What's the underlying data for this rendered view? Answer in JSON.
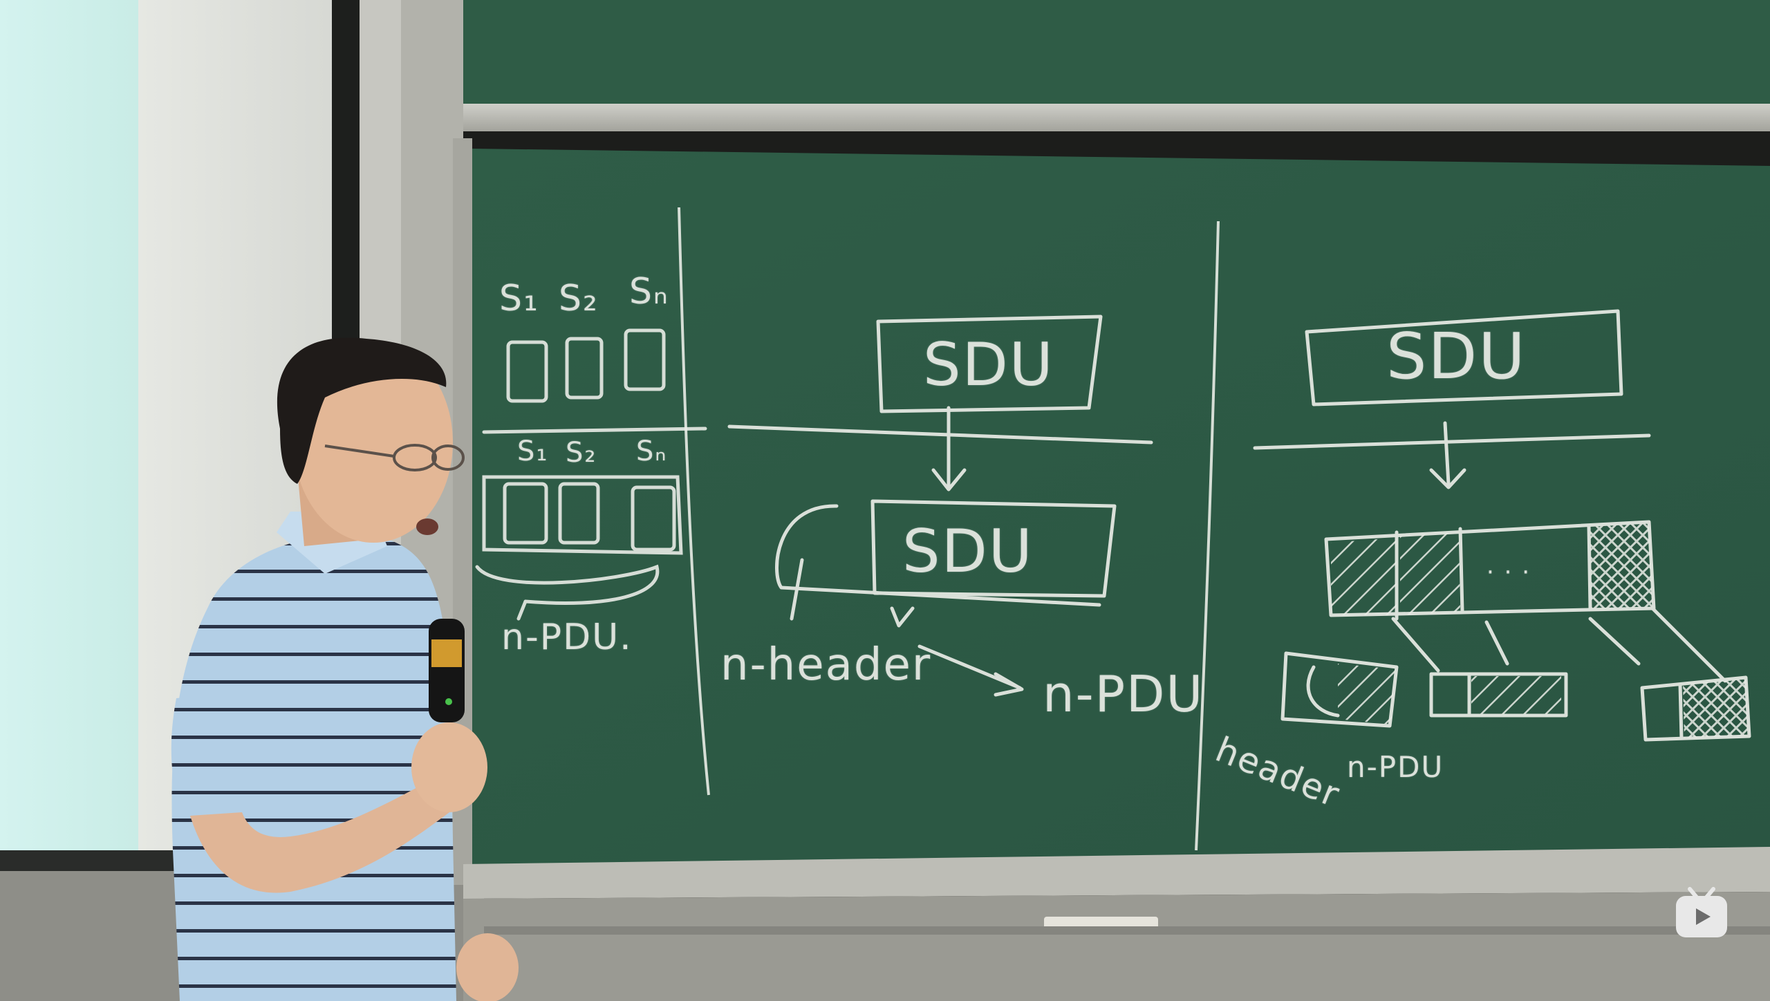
{
  "board": {
    "left_panel": {
      "sublabels_top": [
        "S₁",
        "S₂",
        "Sₙ"
      ],
      "sublabels_bottom": [
        "S₁",
        "S₂",
        "Sₙ"
      ],
      "pdu_label": "n-PDU."
    },
    "middle_panel": {
      "sdu_top": "SDU",
      "sdu_bottom": "SDU",
      "header_label": "n-header",
      "pdu_label": "n-PDU"
    },
    "right_panel": {
      "sdu_top": "SDU",
      "dots": "· · ·",
      "header_label": "header",
      "pdu_label": "n-PDU"
    }
  },
  "colors": {
    "board": "#2e5a45",
    "chalk": "#e9ece6",
    "projection_screen": "#d6f2ee",
    "frame": "#b9b9b2",
    "shirt": "#aecbe3"
  },
  "watermark": {
    "icon": "bilibili-tv-icon"
  }
}
